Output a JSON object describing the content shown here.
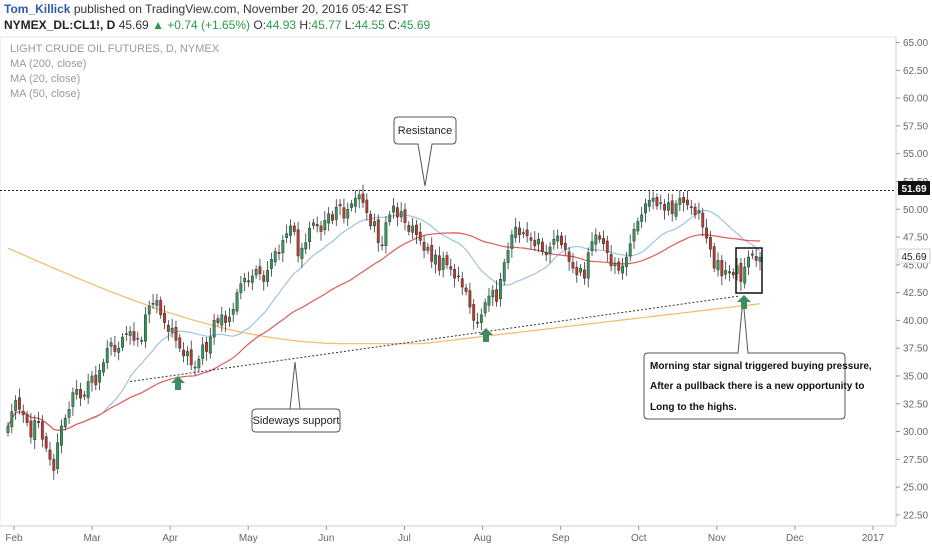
{
  "header": {
    "author": "Tom_Killick",
    "published": "published on TradingView.com, November 20, 2016 05:42 EST",
    "symbol": "NYMEX_DL:CL1!, D",
    "last": "45.69",
    "change": "+0.74 (+1.65%)",
    "ohlc": [
      {
        "label": "O:",
        "value": "44.93"
      },
      {
        "label": "H:",
        "value": "45.77"
      },
      {
        "label": "L:",
        "value": "44.55"
      },
      {
        "label": "C:",
        "value": "45.69"
      }
    ]
  },
  "colors": {
    "up": "#2f9e5a",
    "down": "#c0392b",
    "ma200": "#f5b96a",
    "ma20": "#9fc3e0",
    "ma50": "#e05a5a",
    "arrow": "#3d8c62"
  },
  "chart_data": {
    "type": "candlestick",
    "title": "LIGHT CRUDE OIL FUTURES, D, NYMEX",
    "legend": [
      "MA (200, close)",
      "MA (20, close)",
      "MA (50, close)"
    ],
    "x_ticks": [
      "Feb",
      "Mar",
      "Apr",
      "May",
      "Jun",
      "Jul",
      "Aug",
      "Sep",
      "Oct",
      "Nov",
      "Dec",
      "2017"
    ],
    "y_ticks": [
      "65.00",
      "62.50",
      "60.00",
      "57.50",
      "55.00",
      "52.50",
      "50.00",
      "47.50",
      "45.00",
      "42.50",
      "40.00",
      "37.50",
      "35.00",
      "32.50",
      "30.00",
      "27.50",
      "25.00",
      "22.50"
    ],
    "ylim": [
      21.5,
      65.5
    ],
    "price_labels": {
      "resistance": "51.69",
      "last": "45.69"
    },
    "resistance_level": 51.69,
    "support_trendline": [
      [
        0.48,
        34.5
      ],
      [
        2.42,
        39.8
      ]
    ],
    "closes": [
      30.5,
      31.8,
      32.8,
      32.0,
      31.5,
      30.8,
      29.5,
      31.0,
      30.8,
      29.3,
      28.5,
      27.5,
      26.5,
      29.0,
      30.5,
      31.2,
      32.0,
      33.5,
      33.8,
      33.0,
      33.3,
      34.5,
      35.0,
      34.2,
      35.5,
      36.2,
      37.5,
      38.0,
      37.2,
      37.5,
      38.5,
      38.8,
      39.0,
      38.2,
      38.4,
      38.2,
      40.5,
      41.3,
      41.5,
      41.8,
      40.5,
      39.8,
      39.0,
      39.3,
      38.2,
      37.5,
      36.8,
      37.2,
      36.0,
      35.8,
      36.5,
      37.8,
      37.2,
      38.5,
      40.0,
      39.8,
      40.5,
      39.8,
      40.3,
      41.0,
      42.5,
      43.3,
      43.8,
      43.5,
      44.0,
      44.6,
      44.2,
      43.5,
      44.5,
      45.5,
      46.2,
      46.0,
      47.2,
      47.8,
      48.5,
      48.0,
      45.8,
      46.5,
      47.0,
      48.3,
      48.8,
      48.5,
      48.0,
      49.0,
      49.6,
      49.0,
      50.2,
      50.3,
      49.2,
      50.0,
      50.5,
      51.0,
      51.3,
      50.6,
      49.7,
      48.5,
      48.9,
      47.0,
      46.8,
      48.8,
      49.5,
      50.3,
      49.3,
      49.8,
      48.8,
      48.0,
      48.5,
      47.7,
      47.2,
      46.3,
      46.6,
      45.3,
      45.9,
      44.5,
      45.6,
      45.0,
      44.6,
      43.8,
      44.0,
      43.0,
      42.6,
      41.2,
      40.0,
      39.8,
      40.5,
      41.6,
      42.2,
      42.7,
      41.7,
      43.7,
      45.2,
      46.3,
      47.7,
      48.4,
      47.7,
      47.9,
      47.6,
      47.2,
      46.7,
      47.3,
      46.2,
      45.9,
      46.6,
      47.3,
      47.6,
      46.8,
      46.4,
      45.3,
      44.7,
      44.1,
      44.7,
      43.8,
      46.1,
      47.1,
      47.7,
      47.3,
      46.9,
      46.1,
      44.9,
      45.1,
      44.5,
      44.9,
      45.7,
      46.9,
      48.2,
      48.9,
      49.5,
      50.5,
      50.8,
      51.0,
      50.3,
      50.6,
      49.9,
      50.6,
      49.6,
      50.5,
      51.0,
      50.6,
      50.4,
      50.2,
      49.5,
      49.9,
      48.4,
      47.4,
      46.4,
      44.7,
      45.4,
      44.0,
      44.5,
      44.4,
      44.1,
      44.9,
      43.5,
      44.8,
      45.7,
      46.0,
      45.4,
      45.69
    ]
  },
  "annotations": {
    "resistance": "Resistance",
    "support": "Sideways support",
    "morning_star": [
      "Morning star signal triggered buying pressure,",
      "After a pullback there is a new opportunity to",
      "Long to the highs."
    ]
  }
}
